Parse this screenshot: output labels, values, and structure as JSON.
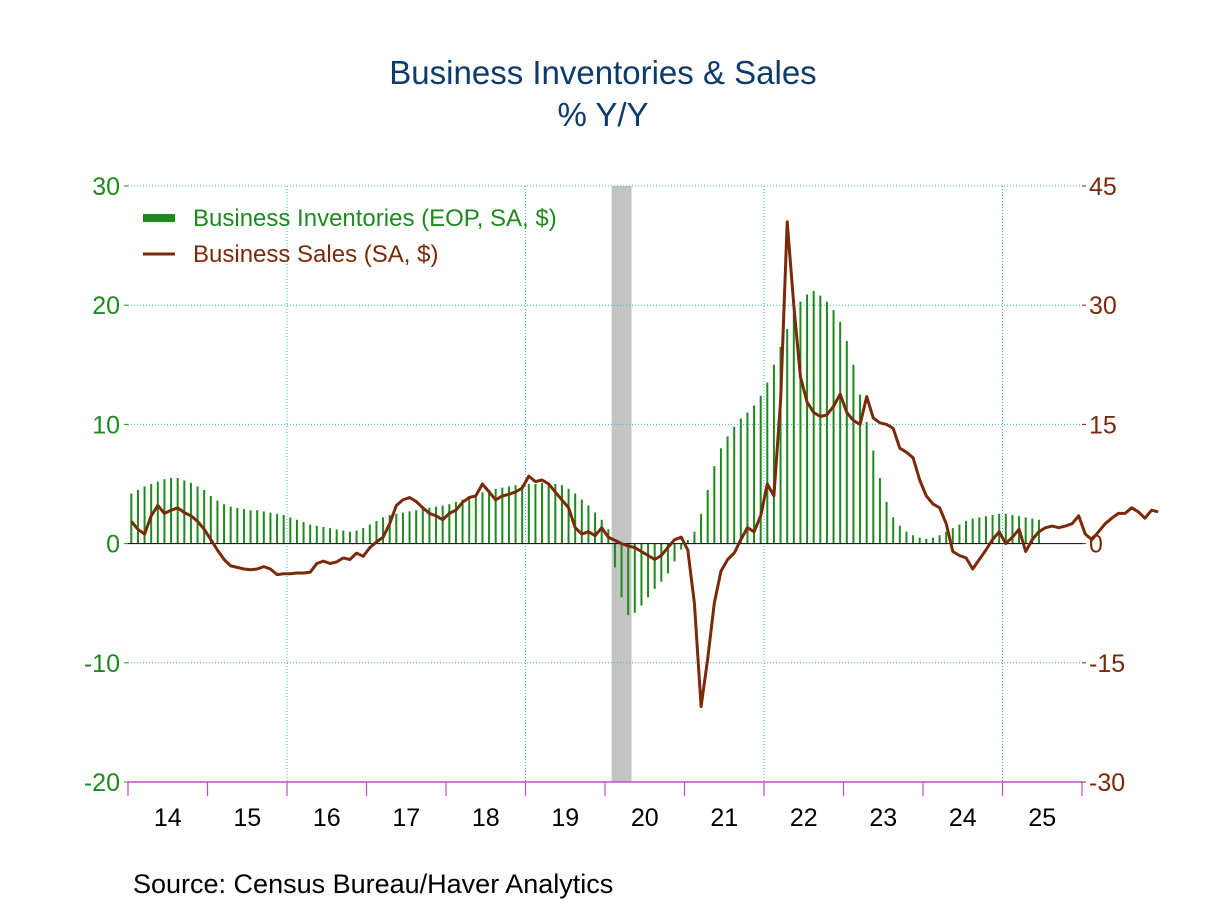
{
  "chart_data": {
    "type": "bar+line",
    "title": "Business Inventories & Sales",
    "subtitle": "% Y/Y",
    "source": "Source:  Census Bureau/Haver Analytics",
    "x_tick_labels": [
      "14",
      "15",
      "16",
      "17",
      "18",
      "19",
      "20",
      "21",
      "22",
      "23",
      "24",
      "25"
    ],
    "x_start_year": 2014,
    "y_left": {
      "min": -20,
      "max": 30,
      "ticks": [
        -20,
        -10,
        0,
        10,
        20,
        30
      ],
      "color": "#1e8a1e"
    },
    "y_right": {
      "min": -30,
      "max": 45,
      "ticks": [
        -30,
        -15,
        0,
        15,
        30,
        45
      ],
      "color": "#7a2a08"
    },
    "grid": true,
    "legend_position": "top-left",
    "recession_shading": {
      "start": "2020-02",
      "end": "2020-04",
      "color": "#c4c4c4"
    },
    "series": [
      {
        "name": "Business Inventories (EOP, SA, $)",
        "axis": "left",
        "render": "bar",
        "color": "#1e8a1e",
        "months_start": "2014-01",
        "values": [
          4.2,
          4.5,
          4.8,
          5.0,
          5.2,
          5.4,
          5.5,
          5.5,
          5.3,
          5.1,
          4.8,
          4.5,
          4.0,
          3.6,
          3.3,
          3.1,
          3.0,
          2.9,
          2.8,
          2.8,
          2.7,
          2.6,
          2.5,
          2.4,
          2.2,
          2.0,
          1.8,
          1.6,
          1.5,
          1.4,
          1.3,
          1.2,
          1.1,
          1.0,
          1.1,
          1.3,
          1.6,
          1.9,
          2.2,
          2.4,
          2.5,
          2.6,
          2.7,
          2.8,
          2.9,
          3.0,
          3.1,
          3.2,
          3.3,
          3.5,
          3.7,
          3.9,
          4.1,
          4.3,
          4.5,
          4.6,
          4.7,
          4.8,
          4.9,
          4.9,
          5.0,
          5.0,
          5.1,
          5.1,
          5.0,
          4.9,
          4.6,
          4.2,
          3.7,
          3.2,
          2.6,
          2.0,
          1.2,
          -2.0,
          -4.5,
          -6.0,
          -5.8,
          -5.2,
          -4.5,
          -3.8,
          -3.2,
          -2.5,
          -1.5,
          -0.5,
          0.3,
          1.0,
          2.5,
          4.5,
          6.5,
          8.0,
          9.0,
          9.8,
          10.5,
          11.0,
          11.6,
          12.4,
          13.5,
          15.0,
          16.5,
          18.0,
          19.3,
          20.3,
          20.9,
          21.2,
          20.8,
          20.3,
          19.6,
          18.6,
          17.0,
          15.0,
          12.5,
          10.2,
          7.8,
          5.5,
          3.5,
          2.2,
          1.5,
          1.0,
          0.7,
          0.5,
          0.4,
          0.5,
          0.7,
          1.0,
          1.3,
          1.6,
          1.9,
          2.1,
          2.2,
          2.3,
          2.4,
          2.5,
          2.5,
          2.4,
          2.3,
          2.2,
          2.1,
          2.0
        ]
      },
      {
        "name": "Business Sales (SA, $)",
        "axis": "right",
        "render": "line",
        "color": "#7a2a08",
        "months_start": "2014-01",
        "values": [
          2.8,
          1.8,
          1.2,
          3.5,
          4.8,
          3.8,
          4.2,
          4.5,
          3.9,
          3.5,
          2.8,
          1.8,
          0.5,
          -0.8,
          -2.0,
          -2.8,
          -3.0,
          -3.2,
          -3.3,
          -3.2,
          -2.9,
          -3.2,
          -3.9,
          -3.8,
          -3.8,
          -3.7,
          -3.7,
          -3.6,
          -2.5,
          -2.2,
          -2.5,
          -2.3,
          -1.8,
          -2.0,
          -1.2,
          -1.6,
          -0.5,
          0.2,
          0.8,
          2.5,
          4.8,
          5.5,
          5.8,
          5.3,
          4.5,
          3.8,
          3.5,
          3.0,
          3.8,
          4.2,
          5.2,
          5.8,
          6.0,
          7.5,
          6.5,
          5.5,
          6.0,
          6.2,
          6.5,
          7.0,
          8.5,
          7.8,
          8.0,
          7.5,
          6.5,
          5.5,
          4.5,
          2.0,
          1.2,
          1.5,
          1.0,
          2.0,
          0.8,
          0.4,
          0.0,
          -0.3,
          -0.5,
          -1.0,
          -1.5,
          -2.0,
          -1.5,
          -0.5,
          0.5,
          0.8,
          -0.8,
          -7.5,
          -20.5,
          -14.5,
          -7.5,
          -3.5,
          -2.0,
          -1.2,
          0.5,
          2.0,
          1.5,
          3.5,
          7.5,
          6.0,
          18.0,
          40.5,
          30.0,
          21.0,
          17.8,
          16.5,
          16.0,
          16.2,
          17.3,
          18.8,
          16.5,
          15.5,
          15.0,
          18.5,
          15.8,
          15.2,
          15.0,
          14.5,
          12.0,
          11.5,
          10.8,
          8.0,
          6.0,
          5.0,
          4.5,
          2.5,
          -1.0,
          -1.5,
          -1.8,
          -3.2,
          -2.0,
          -0.8,
          0.5,
          1.5,
          0.0,
          0.8,
          1.8,
          -1.0,
          0.5,
          1.5,
          2.0,
          2.2,
          2.0,
          2.2,
          2.5,
          3.5,
          1.2,
          0.5,
          1.5,
          2.5,
          3.2,
          3.8,
          3.8,
          4.5,
          4.0,
          3.2,
          4.2,
          4.0
        ]
      }
    ]
  }
}
